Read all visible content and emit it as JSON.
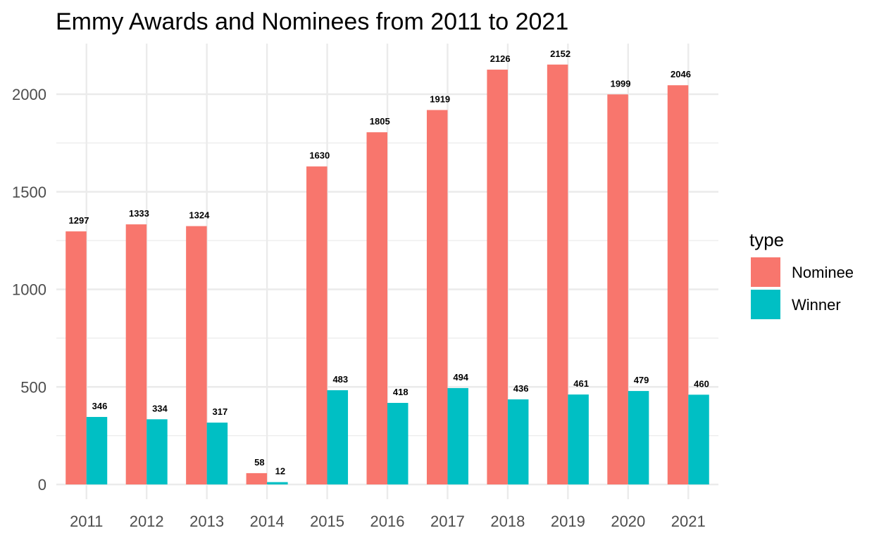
{
  "chart_data": {
    "type": "bar",
    "title": "Emmy Awards and Nominees from 2011 to 2021",
    "xlabel": "",
    "ylabel": "",
    "categories": [
      "2011",
      "2012",
      "2013",
      "2014",
      "2015",
      "2016",
      "2017",
      "2018",
      "2019",
      "2020",
      "2021"
    ],
    "series": [
      {
        "name": "Nominee",
        "color": "#F8766D",
        "values": [
          1297,
          1333,
          1324,
          58,
          1630,
          1805,
          1919,
          2126,
          2152,
          1999,
          2046
        ]
      },
      {
        "name": "Winner",
        "color": "#00BFC4",
        "values": [
          346,
          334,
          317,
          12,
          483,
          418,
          494,
          436,
          461,
          479,
          460
        ]
      }
    ],
    "ylim": [
      0,
      2250
    ],
    "yticks": [
      0,
      500,
      1000,
      1500,
      2000
    ],
    "ytick_labels": [
      "0",
      "500",
      "1000",
      "1500",
      "2000"
    ],
    "grid": true,
    "data_labels": true,
    "legend": {
      "title": "type",
      "position": "right"
    }
  }
}
